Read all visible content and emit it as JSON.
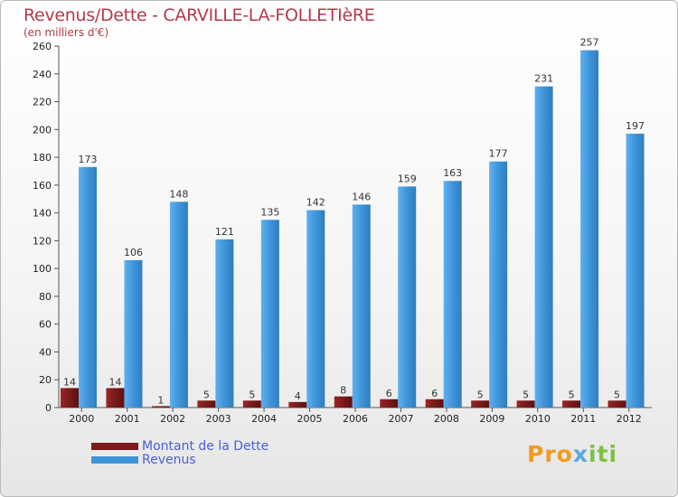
{
  "chart_data": {
    "type": "bar",
    "title": "Revenus/Dette - CARVILLE-LA-FOLLETIèRE",
    "subtitle": "(en milliers d'€)",
    "categories": [
      "2000",
      "2001",
      "2002",
      "2003",
      "2004",
      "2005",
      "2006",
      "2007",
      "2008",
      "2009",
      "2010",
      "2011",
      "2012"
    ],
    "series": [
      {
        "name": "Montant de la Dette",
        "color": "#7a1a1a",
        "values": [
          14,
          14,
          1,
          5,
          5,
          4,
          8,
          6,
          6,
          5,
          5,
          5,
          5
        ]
      },
      {
        "name": "Revenus",
        "color": "#3f94d8",
        "values": [
          173,
          106,
          148,
          121,
          135,
          142,
          146,
          159,
          163,
          177,
          231,
          257,
          197
        ]
      }
    ],
    "ylim": [
      0,
      260
    ],
    "yticks": [
      0,
      20,
      40,
      60,
      80,
      100,
      120,
      140,
      160,
      180,
      200,
      220,
      240,
      260
    ],
    "grid": false,
    "legend_position": "bottom-left"
  },
  "branding": {
    "logo": "Proxiti"
  }
}
